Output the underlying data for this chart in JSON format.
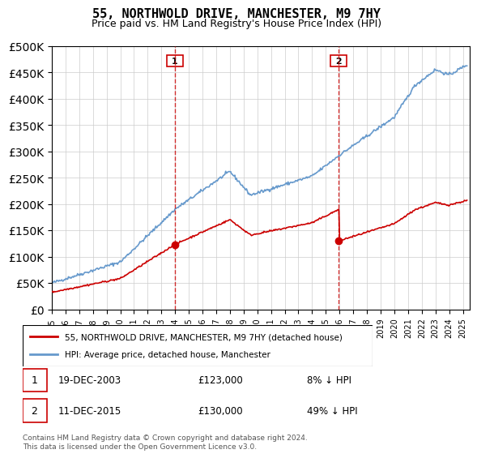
{
  "title": "55, NORTHWOLD DRIVE, MANCHESTER, M9 7HY",
  "subtitle": "Price paid vs. HM Land Registry's House Price Index (HPI)",
  "legend_line1": "55, NORTHWOLD DRIVE, MANCHESTER, M9 7HY (detached house)",
  "legend_line2": "HPI: Average price, detached house, Manchester",
  "annotation1_label": "1",
  "annotation1_date": "19-DEC-2003",
  "annotation1_price": "£123,000",
  "annotation1_hpi": "8% ↓ HPI",
  "annotation2_label": "2",
  "annotation2_date": "11-DEC-2015",
  "annotation2_price": "£130,000",
  "annotation2_hpi": "49% ↓ HPI",
  "footnote": "Contains HM Land Registry data © Crown copyright and database right 2024.\nThis data is licensed under the Open Government Licence v3.0.",
  "hpi_color": "#6699cc",
  "price_color": "#cc0000",
  "annotation_color": "#cc0000",
  "ylim": [
    0,
    500000
  ],
  "yticks": [
    0,
    50000,
    100000,
    150000,
    200000,
    250000,
    300000,
    350000,
    400000,
    450000,
    500000
  ],
  "xlim_start": 1995.0,
  "xlim_end": 2025.5,
  "sale1_x": 2003.97,
  "sale1_y": 123000,
  "sale2_x": 2015.95,
  "sale2_y": 130000,
  "vline1_x": 2003.97,
  "vline2_x": 2015.95
}
